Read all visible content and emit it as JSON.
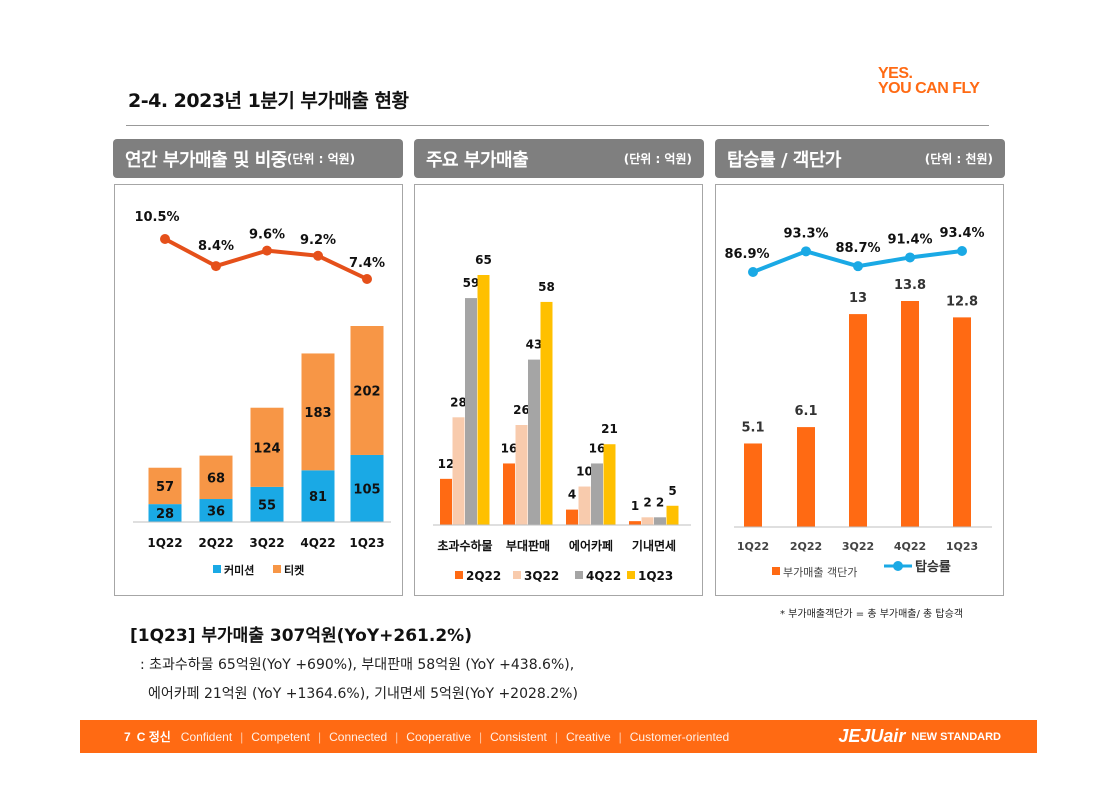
{
  "header": {
    "title": "2-4. 2023년 1분기 부가매출 현황",
    "brand_line1": "YES.",
    "brand_line2": "YOU CAN FLY"
  },
  "panels": [
    {
      "title": "연간 부가매출 및 비중",
      "unit": "(단위 : 억원)"
    },
    {
      "title": "주요 부가매출",
      "unit": "(단위 : 억원)"
    },
    {
      "title": "탑승률 / 객단가",
      "unit": "(단위 : 천원)"
    }
  ],
  "chart_data": [
    {
      "type": "bar",
      "stacked": true,
      "categories": [
        "1Q22",
        "2Q22",
        "3Q22",
        "4Q22",
        "1Q23"
      ],
      "series": [
        {
          "name": "커미션",
          "color": "#1aa9e5",
          "values": [
            28,
            36,
            55,
            81,
            105
          ]
        },
        {
          "name": "티켓",
          "color": "#f79646",
          "values": [
            57,
            68,
            124,
            183,
            202
          ]
        }
      ],
      "line": {
        "color": "#e5501a",
        "values": [
          10.5,
          8.4,
          9.6,
          9.2,
          7.4
        ],
        "labels": [
          "10.5%",
          "8.4%",
          "9.6%",
          "9.2%",
          "7.4%"
        ]
      },
      "legend_position": "bottom"
    },
    {
      "type": "bar",
      "categories": [
        "초과수하물",
        "부대판매",
        "에어카페",
        "기내면세"
      ],
      "series": [
        {
          "name": "2Q22",
          "color": "#ff6a13",
          "values": [
            12,
            16,
            4,
            1
          ]
        },
        {
          "name": "3Q22",
          "color": "#f8cbad",
          "values": [
            28,
            26,
            10,
            2
          ]
        },
        {
          "name": "4Q22",
          "color": "#a5a5a5",
          "values": [
            59,
            43,
            16,
            2
          ]
        },
        {
          "name": "1Q23",
          "color": "#ffc000",
          "values": [
            65,
            58,
            21,
            5
          ]
        }
      ],
      "legend_position": "bottom"
    },
    {
      "type": "bar",
      "categories": [
        "1Q22",
        "2Q22",
        "3Q22",
        "4Q22",
        "1Q23"
      ],
      "series": [
        {
          "name": "부가매출 객단가",
          "color": "#ff6a13",
          "values": [
            5.1,
            6.1,
            13,
            13.8,
            12.8
          ]
        }
      ],
      "line": {
        "name": "탑승률",
        "color": "#1aa9e5",
        "values": [
          86.9,
          93.3,
          88.7,
          91.4,
          93.4
        ],
        "labels": [
          "86.9%",
          "93.3%",
          "88.7%",
          "91.4%",
          "93.4%"
        ]
      },
      "legend_position": "bottom"
    }
  ],
  "footnote": "* 부가매출객단가 = 총 부가매출/ 총 탑승객",
  "summary": {
    "title": "[1Q23] 부가매출 307억원(YoY+261.2%)",
    "line1": ": 초과수하물 65억원(YoY +690%), 부대판매 58억원 (YoY +438.6%),",
    "line2": "에어카페 21억원 (YoY +1364.6%), 기내면세 5억원(YoY +2028.2%)"
  },
  "footer": {
    "page_number": "7",
    "spirit": "C 정신",
    "values": [
      "Confident",
      "Competent",
      "Connected",
      "Cooperative",
      "Consistent",
      "Creative",
      "Customer-oriented"
    ],
    "logo": "JEJUair",
    "tagline": "NEW STANDARD"
  }
}
